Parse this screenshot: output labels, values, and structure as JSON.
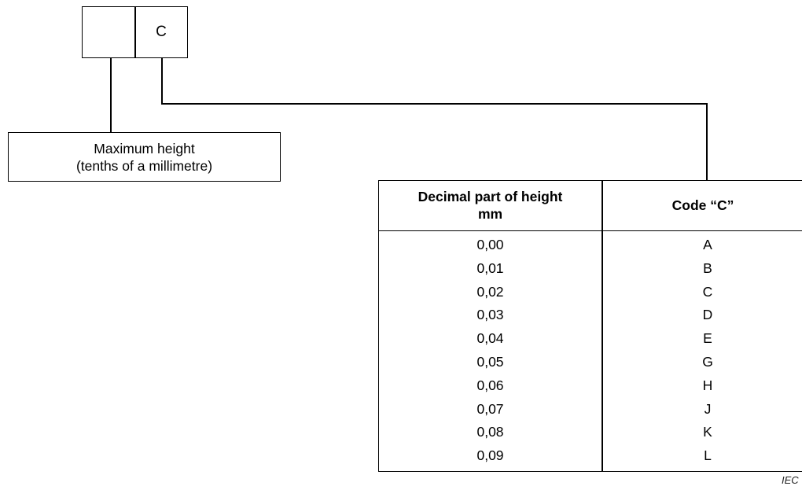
{
  "code_box": {
    "left_cell": "",
    "right_cell": "C"
  },
  "label": {
    "line1": "Maximum height",
    "line2": "(tenths of a millimetre)"
  },
  "table": {
    "header": {
      "col1_line1": "Decimal part of height",
      "col1_line2": "mm",
      "col2": "Code “C”"
    },
    "rows": [
      {
        "value": "0,00",
        "code": "A"
      },
      {
        "value": "0,01",
        "code": "B"
      },
      {
        "value": "0,02",
        "code": "C"
      },
      {
        "value": "0,03",
        "code": "D"
      },
      {
        "value": "0,04",
        "code": "E"
      },
      {
        "value": "0,05",
        "code": "G"
      },
      {
        "value": "0,06",
        "code": "H"
      },
      {
        "value": "0,07",
        "code": "J"
      },
      {
        "value": "0,08",
        "code": "K"
      },
      {
        "value": "0,09",
        "code": "L"
      }
    ]
  },
  "footer": {
    "mark": "IEC"
  }
}
